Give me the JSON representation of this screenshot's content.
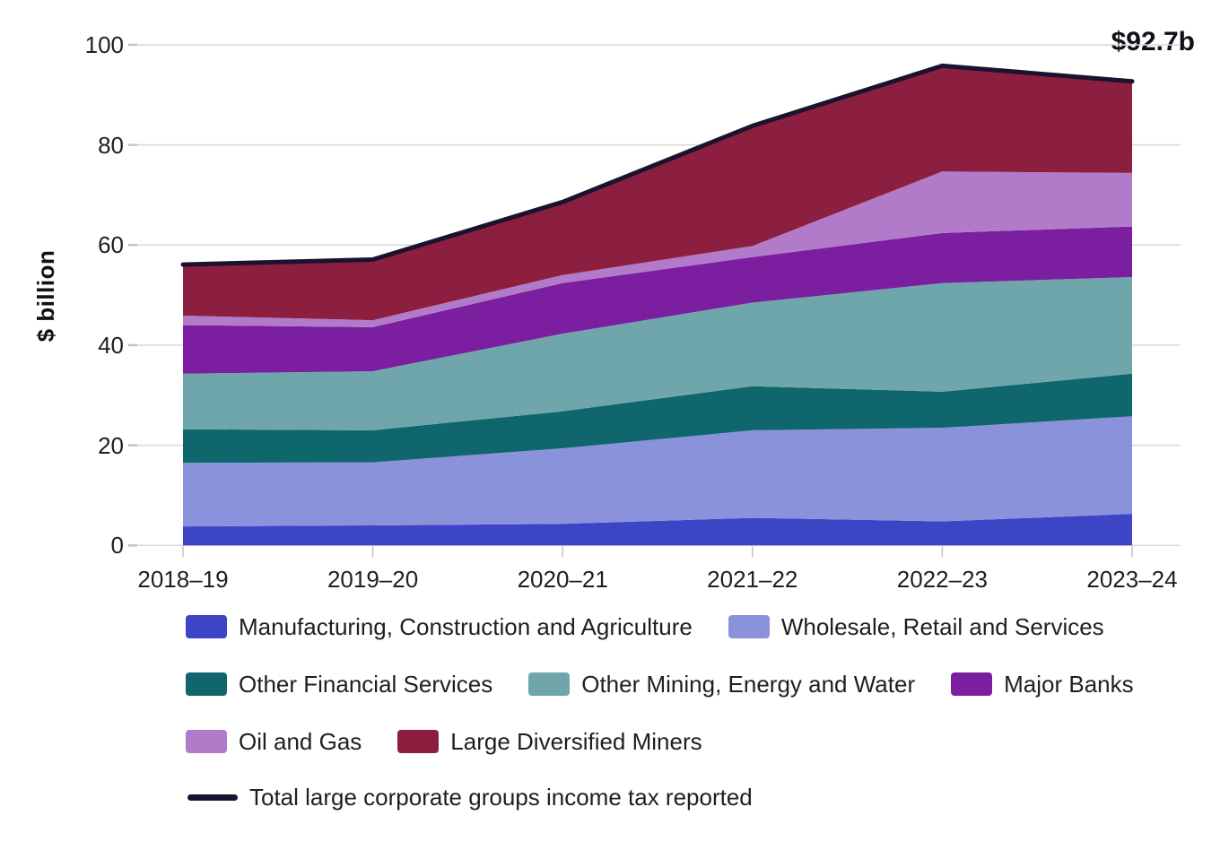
{
  "chart_data": {
    "type": "area",
    "stacked": true,
    "title": "",
    "ylabel": "$ billion",
    "xlabel": "",
    "ylim": [
      0,
      100
    ],
    "yticks": [
      0,
      20,
      40,
      60,
      80,
      100
    ],
    "grid": "horizontal",
    "legend_position": "bottom",
    "categories": [
      "2018–19",
      "2019–20",
      "2020–21",
      "2021–22",
      "2022–23",
      "2023–24"
    ],
    "series": [
      {
        "name": "Manufacturing, Construction and Agriculture",
        "color": "#3b45c6",
        "values": [
          3.8,
          4.0,
          4.3,
          5.5,
          4.8,
          6.3
        ]
      },
      {
        "name": "Wholesale, Retail and Services",
        "color": "#8b92dc",
        "values": [
          12.7,
          12.6,
          15.1,
          17.5,
          18.7,
          19.5
        ]
      },
      {
        "name": "Other Financial Services",
        "color": "#0f666d",
        "values": [
          6.7,
          6.4,
          7.4,
          8.8,
          7.2,
          8.5
        ]
      },
      {
        "name": "Other Mining, Energy and Water",
        "color": "#6fa6ab",
        "values": [
          11.1,
          11.8,
          15.5,
          16.7,
          21.7,
          19.3
        ]
      },
      {
        "name": "Major Banks",
        "color": "#7b1ea0",
        "values": [
          9.7,
          8.8,
          10.1,
          9.1,
          10.0,
          10.1
        ]
      },
      {
        "name": "Oil and Gas",
        "color": "#b27bc9",
        "values": [
          1.9,
          1.4,
          1.6,
          2.2,
          12.3,
          10.7
        ]
      },
      {
        "name": "Large Diversified Miners",
        "color": "#8c1f40",
        "values": [
          10.2,
          12.1,
          14.6,
          24.0,
          21.1,
          18.3
        ]
      }
    ],
    "total_series": {
      "name": "Total large corporate groups income tax reported",
      "color": "#1b1230",
      "values": [
        56.1,
        57.1,
        68.6,
        83.8,
        95.8,
        92.7
      ]
    },
    "annotation": {
      "text": "$92.7b",
      "category": "2023–24",
      "value": 92.7
    }
  },
  "colors": {
    "background": "#ffffff",
    "gridline": "#d9d9d9",
    "tick": "#c2c2c2",
    "text": "#1f1f1f"
  }
}
